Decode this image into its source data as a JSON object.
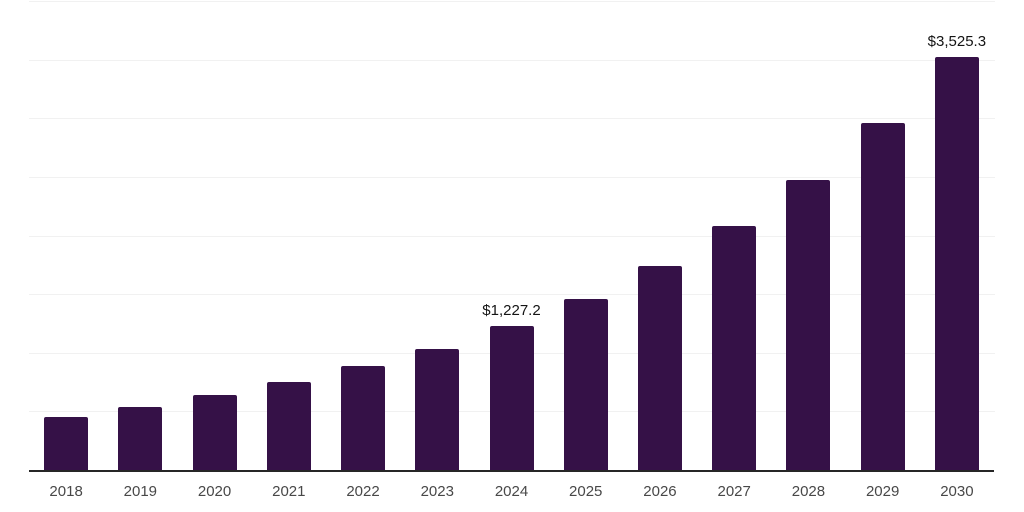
{
  "chart_data": {
    "type": "bar",
    "title": "",
    "categories": [
      "2018",
      "2019",
      "2020",
      "2021",
      "2022",
      "2023",
      "2024",
      "2025",
      "2026",
      "2027",
      "2028",
      "2029",
      "2030"
    ],
    "values": [
      450,
      540,
      640,
      750,
      890,
      1030,
      1227.2,
      1460,
      1742,
      2080,
      2470,
      2958,
      3525.3
    ],
    "data_labels": [
      "",
      "",
      "",
      "",
      "",
      "",
      "$1,227.2",
      "",
      "",
      "",
      "",
      "",
      "$3,525.3"
    ],
    "ylim": [
      0,
      4000
    ],
    "gridline_step": 500,
    "grid": true,
    "legend": "none",
    "xlabel": "",
    "ylabel": "",
    "colors": {
      "bar": "#351147",
      "axis_line": "#262626",
      "gridline": "#f1f1f1",
      "tick_label": "#484848",
      "data_label": "#141414",
      "background": "#ffffff"
    }
  }
}
